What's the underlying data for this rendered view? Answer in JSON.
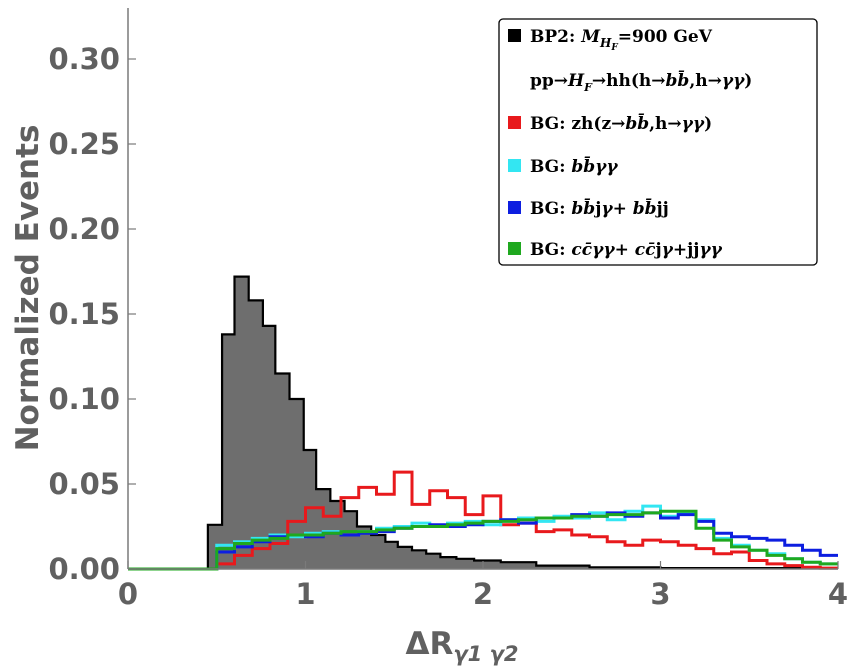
{
  "chart_data": {
    "type": "histogram",
    "ylabel": "Normalized Events",
    "xlabel": "ΔR",
    "xlabel_sub": "γ1 γ2",
    "xlim": [
      0,
      4
    ],
    "ylim": [
      0,
      0.33
    ],
    "xticks": [
      "0",
      "1",
      "2",
      "3",
      "4"
    ],
    "yticks": [
      "0.00",
      "0.05",
      "0.10",
      "0.15",
      "0.20",
      "0.25",
      "0.30"
    ],
    "bin_width": 0.1,
    "legend_position": "top-right",
    "series": [
      {
        "name": "BP2: M_{H_F}=900 GeV  pp→H_F→hh(h→bb̄,h→γγ)",
        "color": "#000000",
        "fill": "#6e6e6e",
        "edges": [
          0,
          0.45,
          0.53,
          0.6,
          0.68,
          0.76,
          0.83,
          0.91,
          0.99,
          1.06,
          1.14,
          1.22,
          1.29,
          1.37,
          1.45,
          1.52,
          1.6,
          1.68,
          1.76,
          1.85,
          1.95,
          2.1,
          2.3,
          2.6,
          3.0,
          4.0
        ],
        "values": [
          0,
          0.026,
          0.138,
          0.172,
          0.158,
          0.143,
          0.115,
          0.1,
          0.07,
          0.047,
          0.04,
          0.034,
          0.025,
          0.02,
          0.016,
          0.013,
          0.011,
          0.009,
          0.007,
          0.006,
          0.005,
          0.004,
          0.002,
          0.001,
          0.0005
        ]
      },
      {
        "name": "BG: zh(z→bb̄,h→γγ)",
        "color": "#e8191c",
        "x": [
          0.05,
          0.15,
          0.25,
          0.35,
          0.45,
          0.55,
          0.65,
          0.75,
          0.85,
          0.95,
          1.05,
          1.15,
          1.25,
          1.35,
          1.45,
          1.55,
          1.65,
          1.75,
          1.85,
          1.95,
          2.05,
          2.15,
          2.25,
          2.35,
          2.45,
          2.55,
          2.65,
          2.75,
          2.85,
          2.95,
          3.05,
          3.15,
          3.25,
          3.35,
          3.45,
          3.55,
          3.65,
          3.75,
          3.85,
          3.95
        ],
        "values": [
          0,
          0,
          0,
          0,
          0,
          0.003,
          0.008,
          0.012,
          0.015,
          0.028,
          0.036,
          0.031,
          0.042,
          0.048,
          0.044,
          0.057,
          0.038,
          0.046,
          0.042,
          0.032,
          0.043,
          0.026,
          0.027,
          0.022,
          0.023,
          0.02,
          0.019,
          0.016,
          0.014,
          0.017,
          0.016,
          0.014,
          0.012,
          0.009,
          0.01,
          0.005,
          0.003,
          0.002,
          0.001,
          0.0005
        ]
      },
      {
        "name": "BG: bb̄γγ",
        "color": "#33e6f2",
        "x": [
          0.05,
          0.15,
          0.25,
          0.35,
          0.45,
          0.55,
          0.65,
          0.75,
          0.85,
          0.95,
          1.05,
          1.15,
          1.25,
          1.35,
          1.45,
          1.55,
          1.65,
          1.75,
          1.85,
          1.95,
          2.05,
          2.15,
          2.25,
          2.35,
          2.45,
          2.55,
          2.65,
          2.75,
          2.85,
          2.95,
          3.05,
          3.15,
          3.25,
          3.35,
          3.45,
          3.55,
          3.65,
          3.75,
          3.85,
          3.95
        ],
        "values": [
          0,
          0,
          0,
          0,
          0,
          0.014,
          0.016,
          0.018,
          0.02,
          0.019,
          0.021,
          0.022,
          0.02,
          0.022,
          0.024,
          0.025,
          0.027,
          0.025,
          0.027,
          0.028,
          0.026,
          0.029,
          0.03,
          0.028,
          0.031,
          0.03,
          0.033,
          0.029,
          0.034,
          0.037,
          0.031,
          0.033,
          0.029,
          0.018,
          0.014,
          0.011,
          0.009,
          0.006,
          0.004,
          0.003
        ]
      },
      {
        "name": "BG: bb̄jγ + bb̄jj",
        "color": "#0d1ee0",
        "x": [
          0.05,
          0.15,
          0.25,
          0.35,
          0.45,
          0.55,
          0.65,
          0.75,
          0.85,
          0.95,
          1.05,
          1.15,
          1.25,
          1.35,
          1.45,
          1.55,
          1.65,
          1.75,
          1.85,
          1.95,
          2.05,
          2.15,
          2.25,
          2.35,
          2.45,
          2.55,
          2.65,
          2.75,
          2.85,
          2.95,
          3.05,
          3.15,
          3.25,
          3.35,
          3.45,
          3.55,
          3.65,
          3.75,
          3.85,
          3.95
        ],
        "values": [
          0,
          0,
          0,
          0,
          0,
          0.01,
          0.013,
          0.016,
          0.019,
          0.02,
          0.019,
          0.021,
          0.02,
          0.021,
          0.022,
          0.024,
          0.025,
          0.026,
          0.025,
          0.026,
          0.028,
          0.029,
          0.027,
          0.03,
          0.03,
          0.032,
          0.031,
          0.033,
          0.031,
          0.033,
          0.03,
          0.032,
          0.028,
          0.021,
          0.019,
          0.018,
          0.017,
          0.014,
          0.011,
          0.008
        ]
      },
      {
        "name": "BG: cc̄γγ + cc̄jγ + jjγγ",
        "color": "#1fa81f",
        "x": [
          0.05,
          0.15,
          0.25,
          0.35,
          0.45,
          0.55,
          0.65,
          0.75,
          0.85,
          0.95,
          1.05,
          1.15,
          1.25,
          1.35,
          1.45,
          1.55,
          1.65,
          1.75,
          1.85,
          1.95,
          2.05,
          2.15,
          2.25,
          2.35,
          2.45,
          2.55,
          2.65,
          2.75,
          2.85,
          2.95,
          3.05,
          3.15,
          3.25,
          3.35,
          3.45,
          3.55,
          3.65,
          3.75,
          3.85,
          3.95
        ],
        "values": [
          0,
          0,
          0,
          0,
          0,
          0.012,
          0.015,
          0.017,
          0.018,
          0.02,
          0.02,
          0.021,
          0.022,
          0.022,
          0.023,
          0.024,
          0.025,
          0.025,
          0.026,
          0.027,
          0.028,
          0.028,
          0.029,
          0.03,
          0.03,
          0.031,
          0.031,
          0.032,
          0.032,
          0.033,
          0.034,
          0.034,
          0.024,
          0.017,
          0.013,
          0.011,
          0.008,
          0.006,
          0.004,
          0.003
        ]
      }
    ]
  }
}
